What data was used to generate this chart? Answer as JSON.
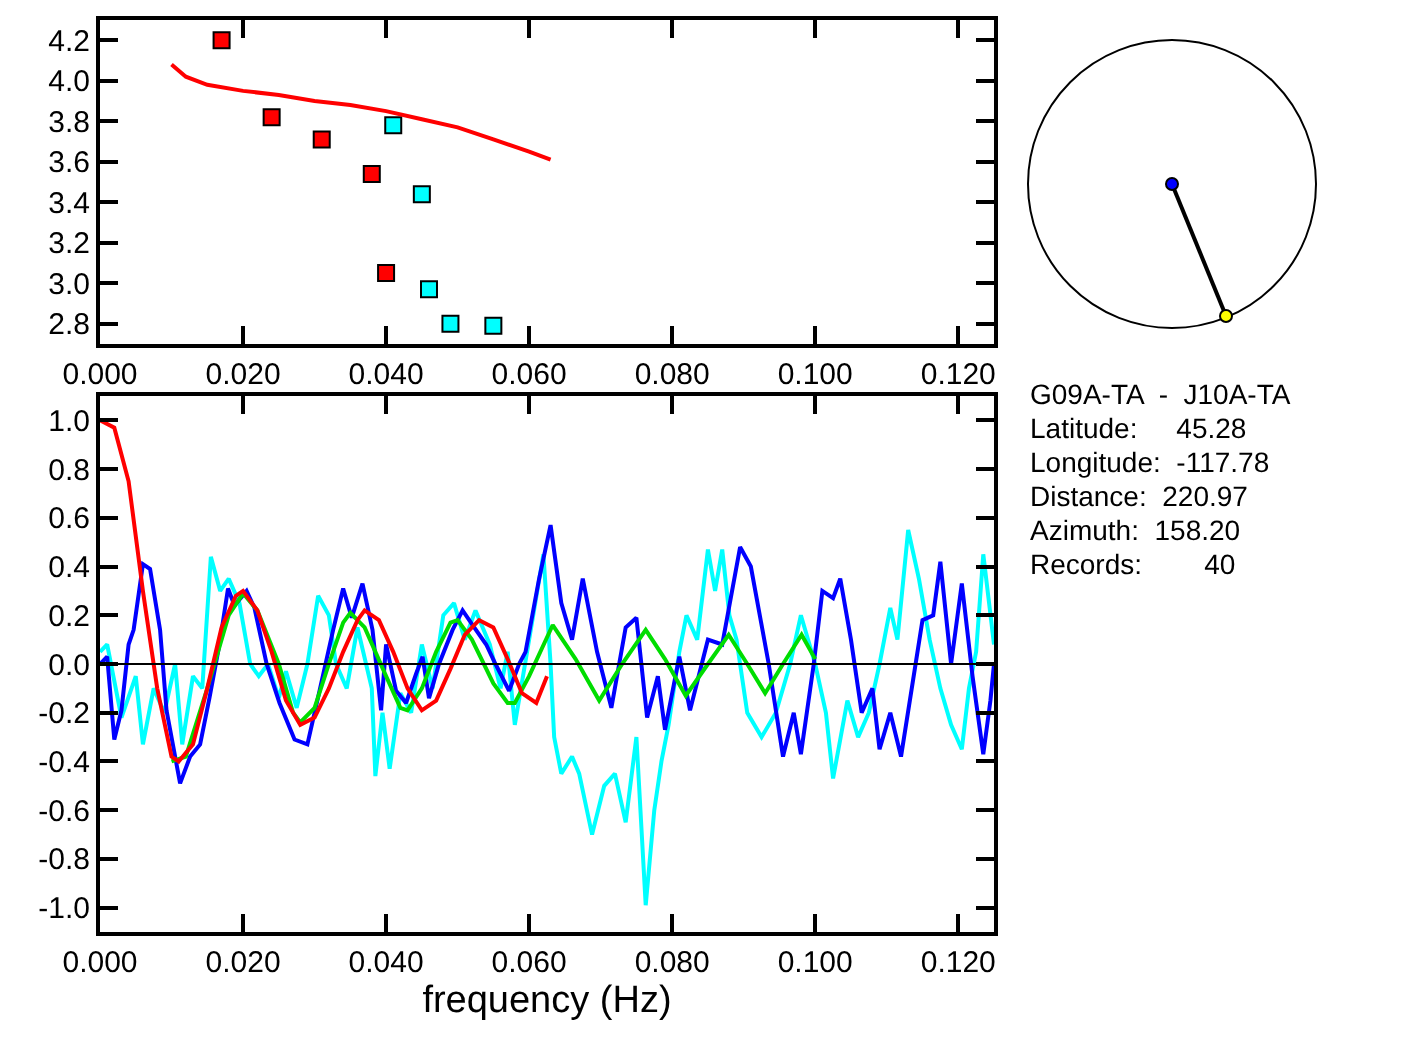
{
  "chart_data": [
    {
      "type": "scatter",
      "xlim": [
        0,
        0.125
      ],
      "ylim": [
        2.7,
        4.3
      ],
      "xticks": [
        {
          "value": 0,
          "label": "0.000"
        },
        {
          "value": 0.02,
          "label": "0.020"
        },
        {
          "value": 0.04,
          "label": "0.040"
        },
        {
          "value": 0.06,
          "label": "0.060"
        },
        {
          "value": 0.08,
          "label": "0.080"
        },
        {
          "value": 0.1,
          "label": "0.100"
        },
        {
          "value": 0.12,
          "label": "0.120"
        }
      ],
      "yticks": [
        2.8,
        {
          "value": 3,
          "label": "3.0"
        },
        3.2,
        3.4,
        3.6,
        3.8,
        {
          "value": 4,
          "label": "4.0"
        },
        4.2
      ],
      "series": [
        {
          "type": "scatter",
          "marker": "square",
          "color": "#ff0000",
          "x": [
            0.017,
            0.024,
            0.031,
            0.038,
            0.04
          ],
          "values": [
            4.2,
            3.82,
            3.71,
            3.54,
            3.05
          ]
        },
        {
          "type": "scatter",
          "marker": "square",
          "color": "#00ffff",
          "x": [
            0.041,
            0.045,
            0.046,
            0.049,
            0.055
          ],
          "values": [
            3.78,
            3.44,
            2.97,
            2.8,
            2.79
          ]
        },
        {
          "type": "line",
          "marker": "none",
          "color": "#ff0000",
          "x": [
            0.01,
            0.012,
            0.015,
            0.02,
            0.025,
            0.03,
            0.035,
            0.04,
            0.045,
            0.05,
            0.055,
            0.06,
            0.063
          ],
          "values": [
            4.08,
            4.02,
            3.98,
            3.95,
            3.93,
            3.9,
            3.88,
            3.85,
            3.81,
            3.77,
            3.71,
            3.65,
            3.61
          ]
        }
      ]
    },
    {
      "type": "line",
      "xlabel": "frequency (Hz)",
      "xlim": [
        0,
        0.125
      ],
      "ylim": [
        -1.1,
        1.1
      ],
      "xticks": [
        {
          "value": 0,
          "label": "0.000"
        },
        {
          "value": 0.02,
          "label": "0.020"
        },
        {
          "value": 0.04,
          "label": "0.040"
        },
        {
          "value": 0.06,
          "label": "0.060"
        },
        {
          "value": 0.08,
          "label": "0.080"
        },
        {
          "value": 0.1,
          "label": "0.100"
        },
        {
          "value": 0.12,
          "label": "0.120"
        }
      ],
      "yticks": [
        {
          "value": -1,
          "label": "-1.0"
        },
        {
          "value": -0.8,
          "label": "-0.8"
        },
        {
          "value": -0.6,
          "label": "-0.6"
        },
        {
          "value": -0.4,
          "label": "-0.4"
        },
        {
          "value": -0.2,
          "label": "-0.2"
        },
        {
          "value": 0,
          "label": "0.0"
        },
        {
          "value": 0.2,
          "label": "0.2"
        },
        {
          "value": 0.4,
          "label": "0.4"
        },
        {
          "value": 0.6,
          "label": "0.6"
        },
        {
          "value": 0.8,
          "label": "0.8"
        },
        {
          "value": 1,
          "label": "1.0"
        }
      ],
      "ref_lines": [
        {
          "axis": "y",
          "value": 0,
          "color": "#000000"
        }
      ],
      "series": [
        {
          "color": "#00ffff",
          "x": [
            0,
            0.001,
            0.003,
            0.005,
            0.006,
            0.0075,
            0.009,
            0.0105,
            0.0115,
            0.013,
            0.0143,
            0.0155,
            0.0168,
            0.018,
            0.0195,
            0.021,
            0.0222,
            0.0235,
            0.025,
            0.026,
            0.0275,
            0.029,
            0.0305,
            0.032,
            0.033,
            0.0345,
            0.036,
            0.038,
            0.0385,
            0.0395,
            0.0405,
            0.042,
            0.0435,
            0.045,
            0.0465,
            0.048,
            0.0495,
            0.051,
            0.0525,
            0.0545,
            0.056,
            0.057,
            0.058,
            0.06,
            0.062,
            0.063,
            0.0635,
            0.0645,
            0.066,
            0.067,
            0.0688,
            0.0705,
            0.072,
            0.0735,
            0.075,
            0.0763,
            0.0775,
            0.0785,
            0.0795,
            0.081,
            0.082,
            0.0835,
            0.085,
            0.086,
            0.087,
            0.088,
            0.089,
            0.0905,
            0.0925,
            0.0945,
            0.0965,
            0.098,
            0.1,
            0.1015,
            0.1025,
            0.1045,
            0.106,
            0.1075,
            0.109,
            0.1105,
            0.1115,
            0.113,
            0.1145,
            0.116,
            0.1175,
            0.119,
            0.1205,
            0.1215,
            0.1225,
            0.1235,
            0.125
          ],
          "values": [
            0.05,
            0.08,
            -0.22,
            -0.05,
            -0.33,
            -0.1,
            -0.2,
            0.0,
            -0.33,
            -0.05,
            -0.1,
            0.44,
            0.3,
            0.35,
            0.25,
            0.0,
            -0.05,
            0.0,
            -0.14,
            -0.03,
            -0.18,
            0.0,
            0.28,
            0.2,
            0.0,
            -0.1,
            0.15,
            -0.1,
            -0.46,
            -0.2,
            -0.43,
            -0.12,
            -0.2,
            0.08,
            -0.1,
            0.2,
            0.25,
            0.1,
            0.22,
            0.08,
            -0.1,
            0.05,
            -0.25,
            0.1,
            0.45,
            0.0,
            -0.3,
            -0.45,
            -0.38,
            -0.45,
            -0.7,
            -0.5,
            -0.45,
            -0.65,
            -0.3,
            -0.99,
            -0.6,
            -0.4,
            -0.25,
            0.05,
            0.2,
            0.1,
            0.47,
            0.3,
            0.47,
            0.2,
            0.1,
            -0.2,
            -0.3,
            -0.2,
            0.0,
            0.2,
            0.0,
            -0.2,
            -0.47,
            -0.15,
            -0.3,
            -0.2,
            0.0,
            0.23,
            0.1,
            0.55,
            0.35,
            0.1,
            -0.1,
            -0.25,
            -0.35,
            -0.1,
            0.05,
            0.45,
            0.08
          ]
        },
        {
          "color": "#0000ff",
          "x": [
            0,
            0.001,
            0.002,
            0.003,
            0.004,
            0.0047,
            0.006,
            0.007,
            0.0084,
            0.0093,
            0.0112,
            0.0126,
            0.014,
            0.0153,
            0.0167,
            0.0179,
            0.0188,
            0.0205,
            0.0216,
            0.0233,
            0.0251,
            0.0272,
            0.029,
            0.0307,
            0.0326,
            0.034,
            0.0352,
            0.0367,
            0.0381,
            0.0393,
            0.04,
            0.0414,
            0.0428,
            0.0442,
            0.0451,
            0.046,
            0.0474,
            0.0493,
            0.0507,
            0.0521,
            0.054,
            0.0553,
            0.0572,
            0.0586,
            0.0595,
            0.0614,
            0.063,
            0.0645,
            0.066,
            0.0675,
            0.0695,
            0.0715,
            0.0735,
            0.075,
            0.0765,
            0.078,
            0.079,
            0.081,
            0.0825,
            0.085,
            0.087,
            0.0895,
            0.091,
            0.0935,
            0.0955,
            0.097,
            0.098,
            0.0998,
            0.101,
            0.1025,
            0.1035,
            0.105,
            0.1065,
            0.108,
            0.109,
            0.1105,
            0.112,
            0.1135,
            0.115,
            0.1165,
            0.1175,
            0.119,
            0.1205,
            0.122,
            0.1235,
            0.1245,
            0.125
          ],
          "values": [
            0.0,
            0.03,
            -0.31,
            -0.19,
            0.08,
            0.14,
            0.41,
            0.39,
            0.14,
            -0.19,
            -0.49,
            -0.38,
            -0.33,
            -0.14,
            0.08,
            0.31,
            0.24,
            0.3,
            0.23,
            0.0,
            -0.16,
            -0.31,
            -0.33,
            -0.11,
            0.14,
            0.31,
            0.19,
            0.33,
            0.14,
            -0.19,
            0.08,
            -0.11,
            -0.16,
            -0.04,
            0.03,
            -0.14,
            0.0,
            0.14,
            0.22,
            0.16,
            0.08,
            0.0,
            -0.11,
            0.0,
            0.05,
            0.35,
            0.57,
            0.25,
            0.1,
            0.35,
            0.05,
            -0.18,
            0.15,
            0.19,
            -0.22,
            -0.05,
            -0.27,
            0.03,
            -0.19,
            0.1,
            0.08,
            0.48,
            0.4,
            0.0,
            -0.38,
            -0.2,
            -0.37,
            0.0,
            0.3,
            0.27,
            0.35,
            0.1,
            -0.2,
            -0.1,
            -0.35,
            -0.2,
            -0.38,
            -0.1,
            0.18,
            0.2,
            0.42,
            0.0,
            0.33,
            -0.05,
            -0.37,
            -0.15,
            0.0
          ]
        },
        {
          "color": "#00dd00",
          "x": [
            0.01,
            0.012,
            0.015,
            0.018,
            0.02,
            0.022,
            0.025,
            0.027,
            0.028,
            0.03,
            0.032,
            0.034,
            0.035,
            0.037,
            0.04,
            0.042,
            0.043,
            0.045,
            0.047,
            0.049,
            0.05,
            0.052,
            0.055,
            0.057,
            0.058,
            0.06,
            0.0633,
            0.0665,
            0.0698,
            0.073,
            0.0763,
            0.079,
            0.0819,
            0.085,
            0.0879,
            0.0905,
            0.093,
            0.0955,
            0.0981,
            0.1
          ],
          "values": [
            -0.4,
            -0.38,
            -0.1,
            0.2,
            0.29,
            0.22,
            0.0,
            -0.2,
            -0.24,
            -0.18,
            0.0,
            0.17,
            0.21,
            0.15,
            -0.05,
            -0.18,
            -0.19,
            -0.1,
            0.05,
            0.17,
            0.18,
            0.1,
            -0.08,
            -0.16,
            -0.16,
            -0.05,
            0.16,
            0.02,
            -0.15,
            0.0,
            0.14,
            0.02,
            -0.13,
            0.0,
            0.12,
            0.0,
            -0.12,
            0.0,
            0.12,
            0.02
          ]
        },
        {
          "color": "#ff0000",
          "x": [
            0,
            0.002,
            0.004,
            0.006,
            0.008,
            0.01,
            0.011,
            0.013,
            0.015,
            0.017,
            0.019,
            0.02,
            0.022,
            0.024,
            0.026,
            0.028,
            0.03,
            0.032,
            0.034,
            0.036,
            0.037,
            0.039,
            0.041,
            0.043,
            0.045,
            0.047,
            0.049,
            0.051,
            0.053,
            0.055,
            0.057,
            0.059,
            0.061,
            0.0625
          ],
          "values": [
            1.0,
            0.97,
            0.75,
            0.3,
            -0.1,
            -0.38,
            -0.4,
            -0.33,
            -0.1,
            0.15,
            0.28,
            0.3,
            0.22,
            0.05,
            -0.15,
            -0.25,
            -0.22,
            -0.1,
            0.05,
            0.18,
            0.22,
            0.18,
            0.05,
            -0.1,
            -0.19,
            -0.15,
            -0.02,
            0.12,
            0.18,
            0.15,
            0.02,
            -0.12,
            -0.16,
            -0.05
          ]
        }
      ]
    },
    {
      "type": "other",
      "title": "G09A-TA  -  J10A-TA",
      "annotations": [
        "Latitude:     45.28",
        "Longitude:  -117.78",
        "Distance:  220.97",
        "Azimuth:  158.20",
        "Records:        40"
      ]
    }
  ]
}
